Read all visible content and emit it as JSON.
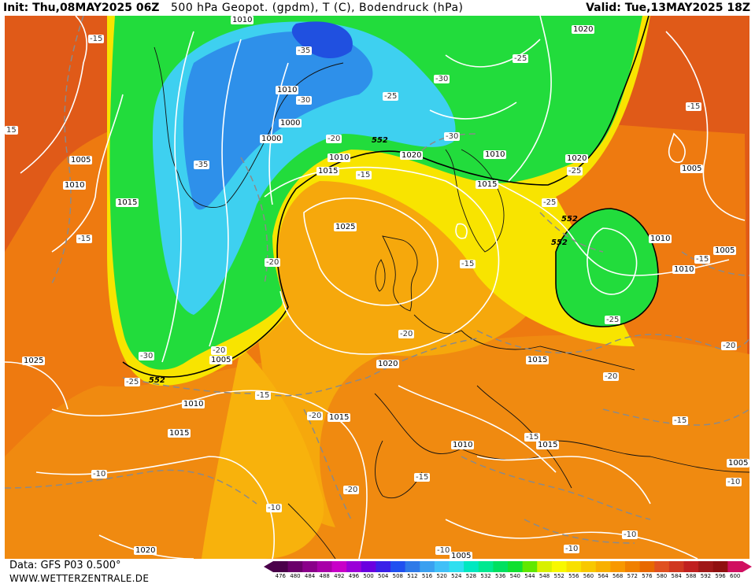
{
  "header": {
    "init_label": "Init:",
    "init_value": "Thu,08MAY2025 06Z",
    "title": "500 hPa Geopot. (gpdm), T (C), Bodendruck (hPa)",
    "valid_label": "Valid:",
    "valid_value": "Tue,13MAY2025 18Z"
  },
  "footer": {
    "source": "Data: GFS P03 0.500°",
    "site": "WWW.WETTERZENTRALE.DE"
  },
  "legend": {
    "values": [
      "476",
      "480",
      "484",
      "488",
      "492",
      "496",
      "500",
      "504",
      "508",
      "512",
      "516",
      "520",
      "524",
      "528",
      "532",
      "536",
      "540",
      "544",
      "548",
      "552",
      "556",
      "560",
      "564",
      "568",
      "572",
      "576",
      "580",
      "584",
      "588",
      "592",
      "596",
      "600"
    ],
    "colors": [
      "#4a004a",
      "#6a006a",
      "#8a008a",
      "#a800a8",
      "#c800c8",
      "#9a00d8",
      "#6a00e0",
      "#3a20e8",
      "#2050f0",
      "#2f7ae8",
      "#3aa0f0",
      "#40c0f8",
      "#30dff0",
      "#00e8c0",
      "#00e890",
      "#00e060",
      "#10e030",
      "#60e800",
      "#d8f000",
      "#f8f800",
      "#f8e000",
      "#f8c800",
      "#f8b000",
      "#f89800",
      "#f08000",
      "#e86800",
      "#e05020",
      "#d03820",
      "#c02020",
      "#a01818",
      "#901010",
      "#d01060"
    ]
  },
  "map_labels": {
    "isobars": [
      "1010",
      "1010",
      "1000",
      "1000",
      "1005",
      "1010",
      "1015",
      "1015",
      "1010",
      "1020",
      "1025",
      "1020",
      "1010",
      "1015",
      "1020",
      "1010",
      "1005",
      "1010",
      "1005",
      "1025",
      "1005",
      "1010",
      "1015",
      "1020",
      "1015",
      "1015",
      "1010",
      "1015",
      "1005",
      "1020",
      "1005",
      "1020",
      "1015"
    ],
    "temps": [
      "-15",
      "-35",
      "-30",
      "-25",
      "-30",
      "-35",
      "-25",
      "-30",
      "-20",
      "-15",
      "-25",
      "-15",
      "-20",
      "-20",
      "-15",
      "-25",
      "-20",
      "-15",
      "-30",
      "-25",
      "-20",
      "-15",
      "-20",
      "-20",
      "-15",
      "-15",
      "-15",
      "-10",
      "-20",
      "-10",
      "-10",
      "-10",
      "-15",
      "-10",
      "15",
      "-25",
      "-10"
    ],
    "geopot": [
      "552",
      "552",
      "552",
      "552"
    ]
  }
}
